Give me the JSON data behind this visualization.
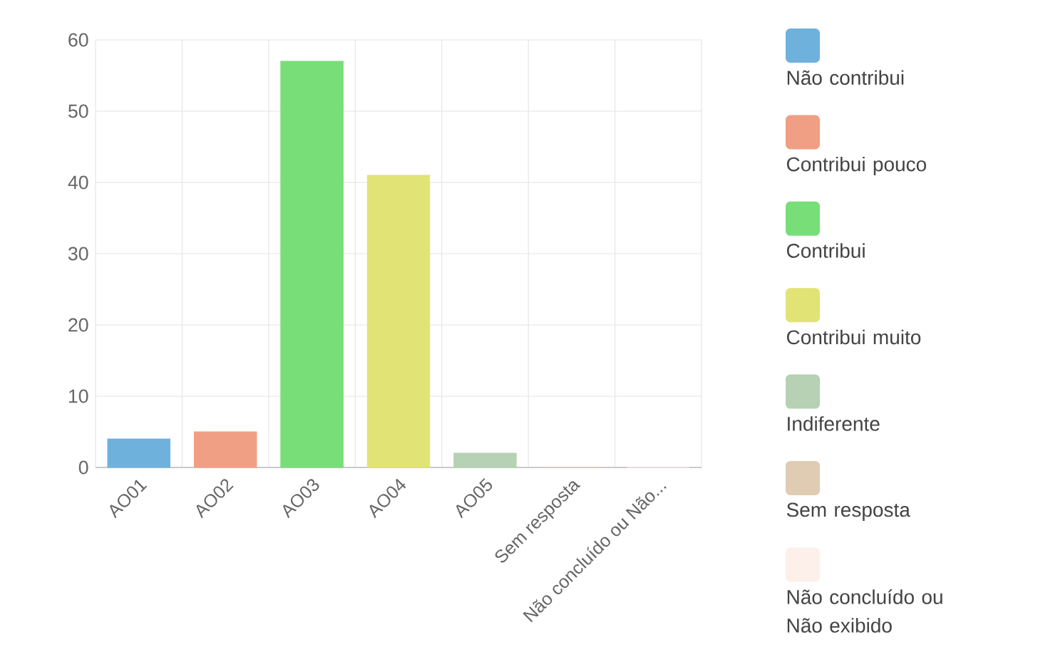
{
  "chart_data": {
    "type": "bar",
    "categories": [
      "AO01",
      "AO02",
      "AO03",
      "AO04",
      "AO05",
      "Sem resposta",
      "Não concluído ou Não..."
    ],
    "series": [
      {
        "name": "Não contribui",
        "color": "#6fb1dd",
        "values": [
          4,
          null,
          null,
          null,
          null,
          null,
          null
        ]
      },
      {
        "name": "Contribui pouco",
        "color": "#f09f84",
        "values": [
          null,
          5,
          null,
          null,
          null,
          null,
          null
        ]
      },
      {
        "name": "Contribui",
        "color": "#78de78",
        "values": [
          null,
          null,
          57,
          null,
          null,
          null,
          null
        ]
      },
      {
        "name": "Contribui muito",
        "color": "#e1e374",
        "values": [
          null,
          null,
          null,
          41,
          null,
          null,
          null
        ]
      },
      {
        "name": "Indiferente",
        "color": "#b6d1b4",
        "values": [
          null,
          null,
          null,
          null,
          2,
          null,
          null
        ]
      },
      {
        "name": "Sem resposta",
        "color": "#dfccb2",
        "values": [
          null,
          null,
          null,
          null,
          null,
          0,
          null
        ]
      },
      {
        "name": "Não concluído ou Não exibido",
        "color": "#fdf0ea",
        "values": [
          null,
          null,
          null,
          null,
          null,
          null,
          0
        ]
      }
    ],
    "ylim": [
      0,
      60
    ],
    "yticks": [
      0,
      10,
      20,
      30,
      40,
      50,
      60
    ],
    "grid": true,
    "legend": "right"
  }
}
